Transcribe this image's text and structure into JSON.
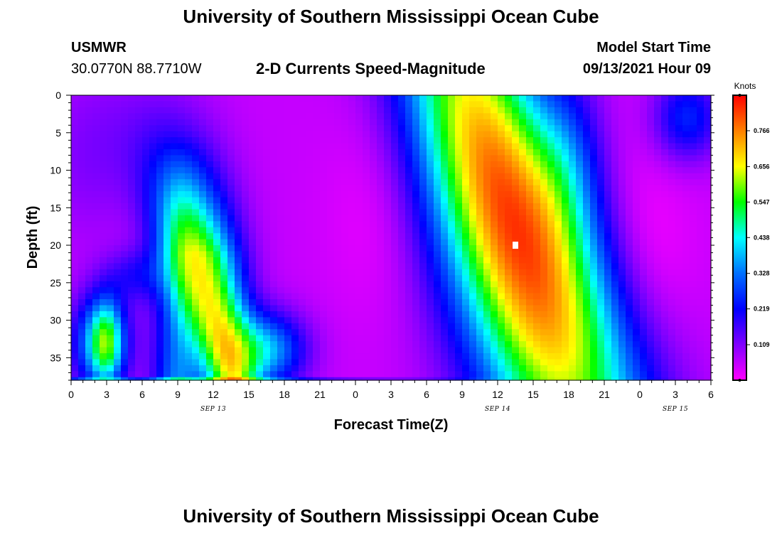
{
  "header": {
    "title": "University of Southern Mississippi Ocean Cube",
    "station": "USMWR",
    "coords": "30.0770N  88.7710W",
    "subtitle": "2-D Currents Speed-Magnitude",
    "model_label": "Model Start Time",
    "model_time": "09/13/2021 Hour 09"
  },
  "footer": {
    "title": "University of Southern Mississippi Ocean Cube"
  },
  "chart_data": {
    "type": "heatmap",
    "xlabel": "Forecast Time(Z)",
    "ylabel": "Depth (ft)",
    "x_range_hours": [
      0,
      54
    ],
    "y_range_ft": [
      0,
      38
    ],
    "x_ticks": [
      "0",
      "3",
      "6",
      "9",
      "12",
      "15",
      "18",
      "21",
      "0",
      "3",
      "6",
      "9",
      "12",
      "15",
      "18",
      "21",
      "0",
      "3",
      "6"
    ],
    "date_labels": [
      {
        "hour": 12,
        "label": "SEP 13"
      },
      {
        "hour": 36,
        "label": "SEP 14"
      },
      {
        "hour": 51,
        "label": "SEP 15"
      }
    ],
    "y_ticks": [
      0,
      5,
      10,
      15,
      20,
      25,
      30,
      35
    ],
    "colorbar": {
      "unit": "Knots",
      "ticks": [
        "0.766",
        "0.656",
        "0.547",
        "0.438",
        "0.328",
        "0.219",
        "0.109"
      ],
      "min": 0,
      "max": 0.875,
      "colors": [
        "#ff00ff",
        "#8000ff",
        "#0000ff",
        "#0070ff",
        "#00ffff",
        "#00ff00",
        "#ffff00",
        "#ff8000",
        "#ff0000"
      ]
    },
    "marker": {
      "hour": 37.5,
      "depth": 20
    }
  }
}
